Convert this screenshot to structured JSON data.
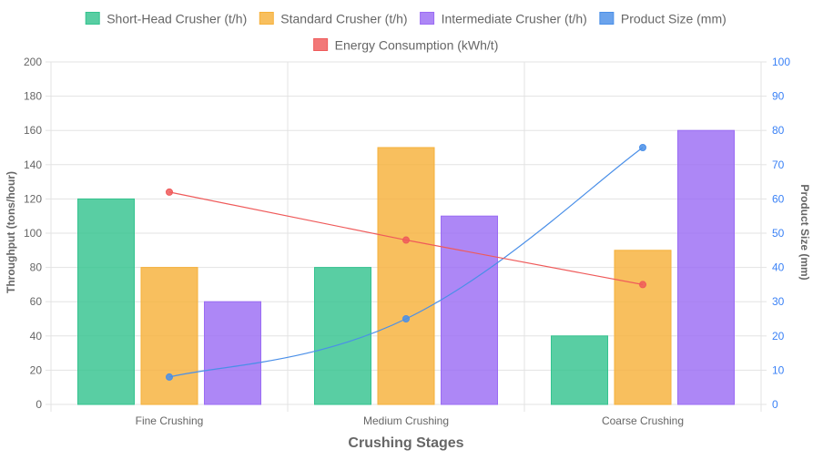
{
  "chart_data": {
    "type": "bar",
    "categories": [
      "Fine Crushing",
      "Medium Crushing",
      "Coarse Crushing"
    ],
    "xlabel": "Crushing Stages",
    "ylabel_left": "Throughput (tons/hour)",
    "ylabel_right": "Product Size (mm)",
    "ylim_left": [
      0,
      200
    ],
    "ylim_right": [
      0,
      100
    ],
    "yticks_left": [
      "0",
      "20",
      "40",
      "60",
      "80",
      "100",
      "120",
      "140",
      "160",
      "180",
      "200"
    ],
    "yticks_right": [
      "0",
      "10",
      "20",
      "30",
      "40",
      "50",
      "60",
      "70",
      "80",
      "90",
      "100"
    ],
    "grid": true,
    "legend_position": "top",
    "series": [
      {
        "name": "Short-Head Crusher (t/h)",
        "type": "bar",
        "axis": "left",
        "color": "#34c38f",
        "values": [
          120,
          80,
          40
        ]
      },
      {
        "name": "Standard Crusher (t/h)",
        "type": "bar",
        "axis": "left",
        "color": "#f6b13a",
        "values": [
          80,
          150,
          90
        ]
      },
      {
        "name": "Intermediate Crusher (t/h)",
        "type": "bar",
        "axis": "left",
        "color": "#9b6cf4",
        "values": [
          60,
          110,
          160
        ]
      },
      {
        "name": "Product Size (mm)",
        "type": "line",
        "axis": "right",
        "color": "#4a8fe8",
        "values": [
          8,
          25,
          75
        ]
      },
      {
        "name": "Energy Consumption (kWh/t)",
        "type": "line",
        "axis": "right",
        "color": "#ef5a5a",
        "values": [
          62,
          48,
          35
        ]
      }
    ]
  }
}
